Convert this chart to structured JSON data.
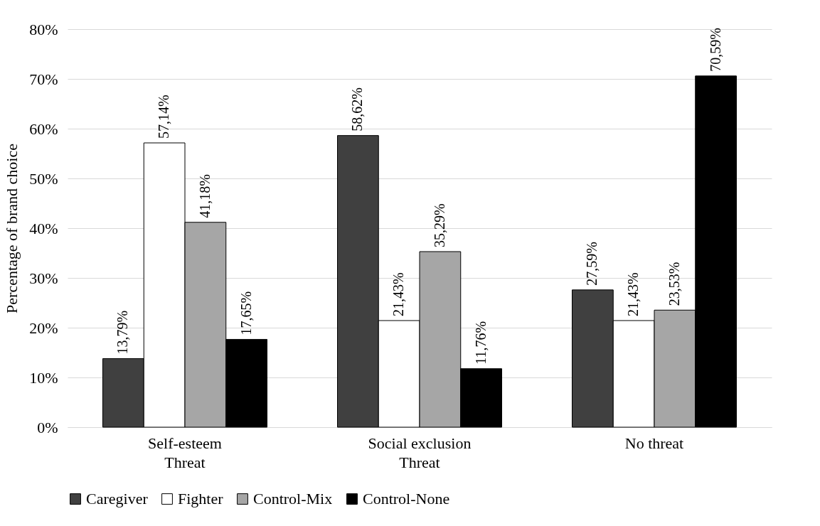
{
  "chart_data": {
    "type": "bar",
    "ylabel": "Percentage of brand choice",
    "categories": [
      "Self-esteem\nThreat",
      "Social exclusion\nThreat",
      "No threat"
    ],
    "series": [
      {
        "name": "Caregiver",
        "color": "#404040",
        "values": [
          13.79,
          58.62,
          27.59
        ],
        "value_labels": [
          "13,79%",
          "58,62%",
          "27,59%"
        ]
      },
      {
        "name": "Fighter",
        "color": "#ffffff",
        "values": [
          57.14,
          21.43,
          21.43
        ],
        "value_labels": [
          "57,14%",
          "21,43%",
          "21,43%"
        ]
      },
      {
        "name": "Control-Mix",
        "color": "#a6a6a6",
        "values": [
          41.18,
          35.29,
          23.53
        ],
        "value_labels": [
          "41,18%",
          "35,29%",
          "23,53%"
        ]
      },
      {
        "name": "Control-None",
        "color": "#000000",
        "values": [
          17.65,
          11.76,
          70.59
        ],
        "value_labels": [
          "17,65%",
          "11,76%",
          "70,59%"
        ]
      }
    ],
    "ylim": [
      0,
      80
    ],
    "yticks": [
      {
        "value": 0,
        "label": "0%"
      },
      {
        "value": 10,
        "label": "10%"
      },
      {
        "value": 20,
        "label": "20%"
      },
      {
        "value": 30,
        "label": "30%"
      },
      {
        "value": 40,
        "label": "40%"
      },
      {
        "value": 50,
        "label": "50%"
      },
      {
        "value": 60,
        "label": "60%"
      },
      {
        "value": 70,
        "label": "70%"
      },
      {
        "value": 80,
        "label": "80%"
      }
    ],
    "grid": "y",
    "legend": "bottom"
  }
}
